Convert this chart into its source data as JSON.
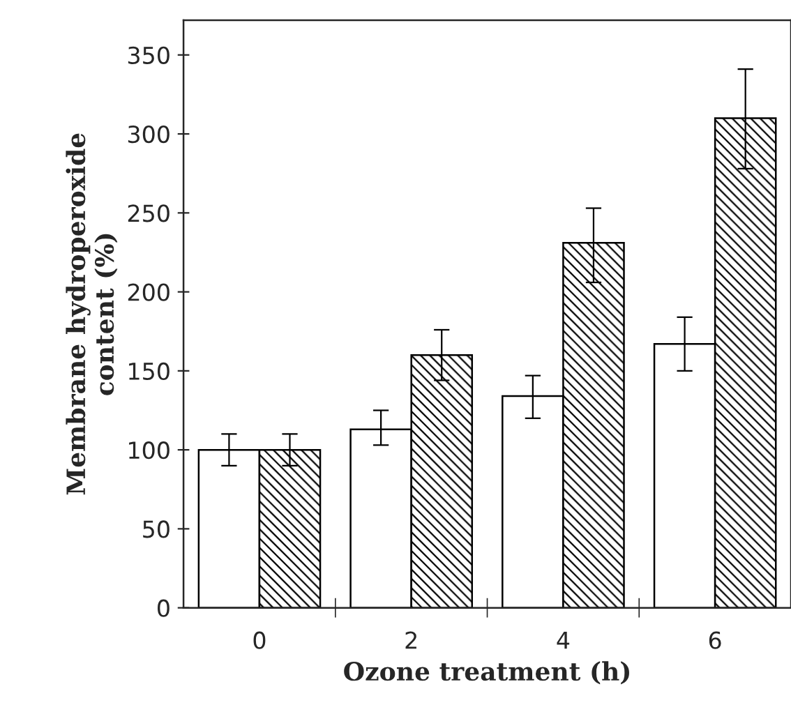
{
  "chart_data": {
    "type": "bar",
    "xlabel": "Ozone treatment (h)",
    "ylabel": "Membrane hydroperoxide\ncontent (%)",
    "categories": [
      "0",
      "2",
      "4",
      "6"
    ],
    "series": [
      {
        "color": "#ffffff",
        "values": [
          100,
          113,
          134,
          167
        ],
        "errors": [
          [
            90,
            110
          ],
          [
            103,
            125
          ],
          [
            120,
            147
          ],
          [
            150,
            184
          ]
        ]
      },
      {
        "color": "#000000",
        "values": [
          100,
          160,
          231,
          310
        ],
        "errors": [
          [
            90,
            110
          ],
          [
            144,
            176
          ],
          [
            206,
            253
          ],
          [
            278,
            341
          ]
        ]
      }
    ],
    "ylim": [
      0,
      372
    ],
    "yticks": [
      0,
      50,
      100,
      150,
      200,
      250,
      300,
      350
    ],
    "grid": false,
    "legend": false
  }
}
